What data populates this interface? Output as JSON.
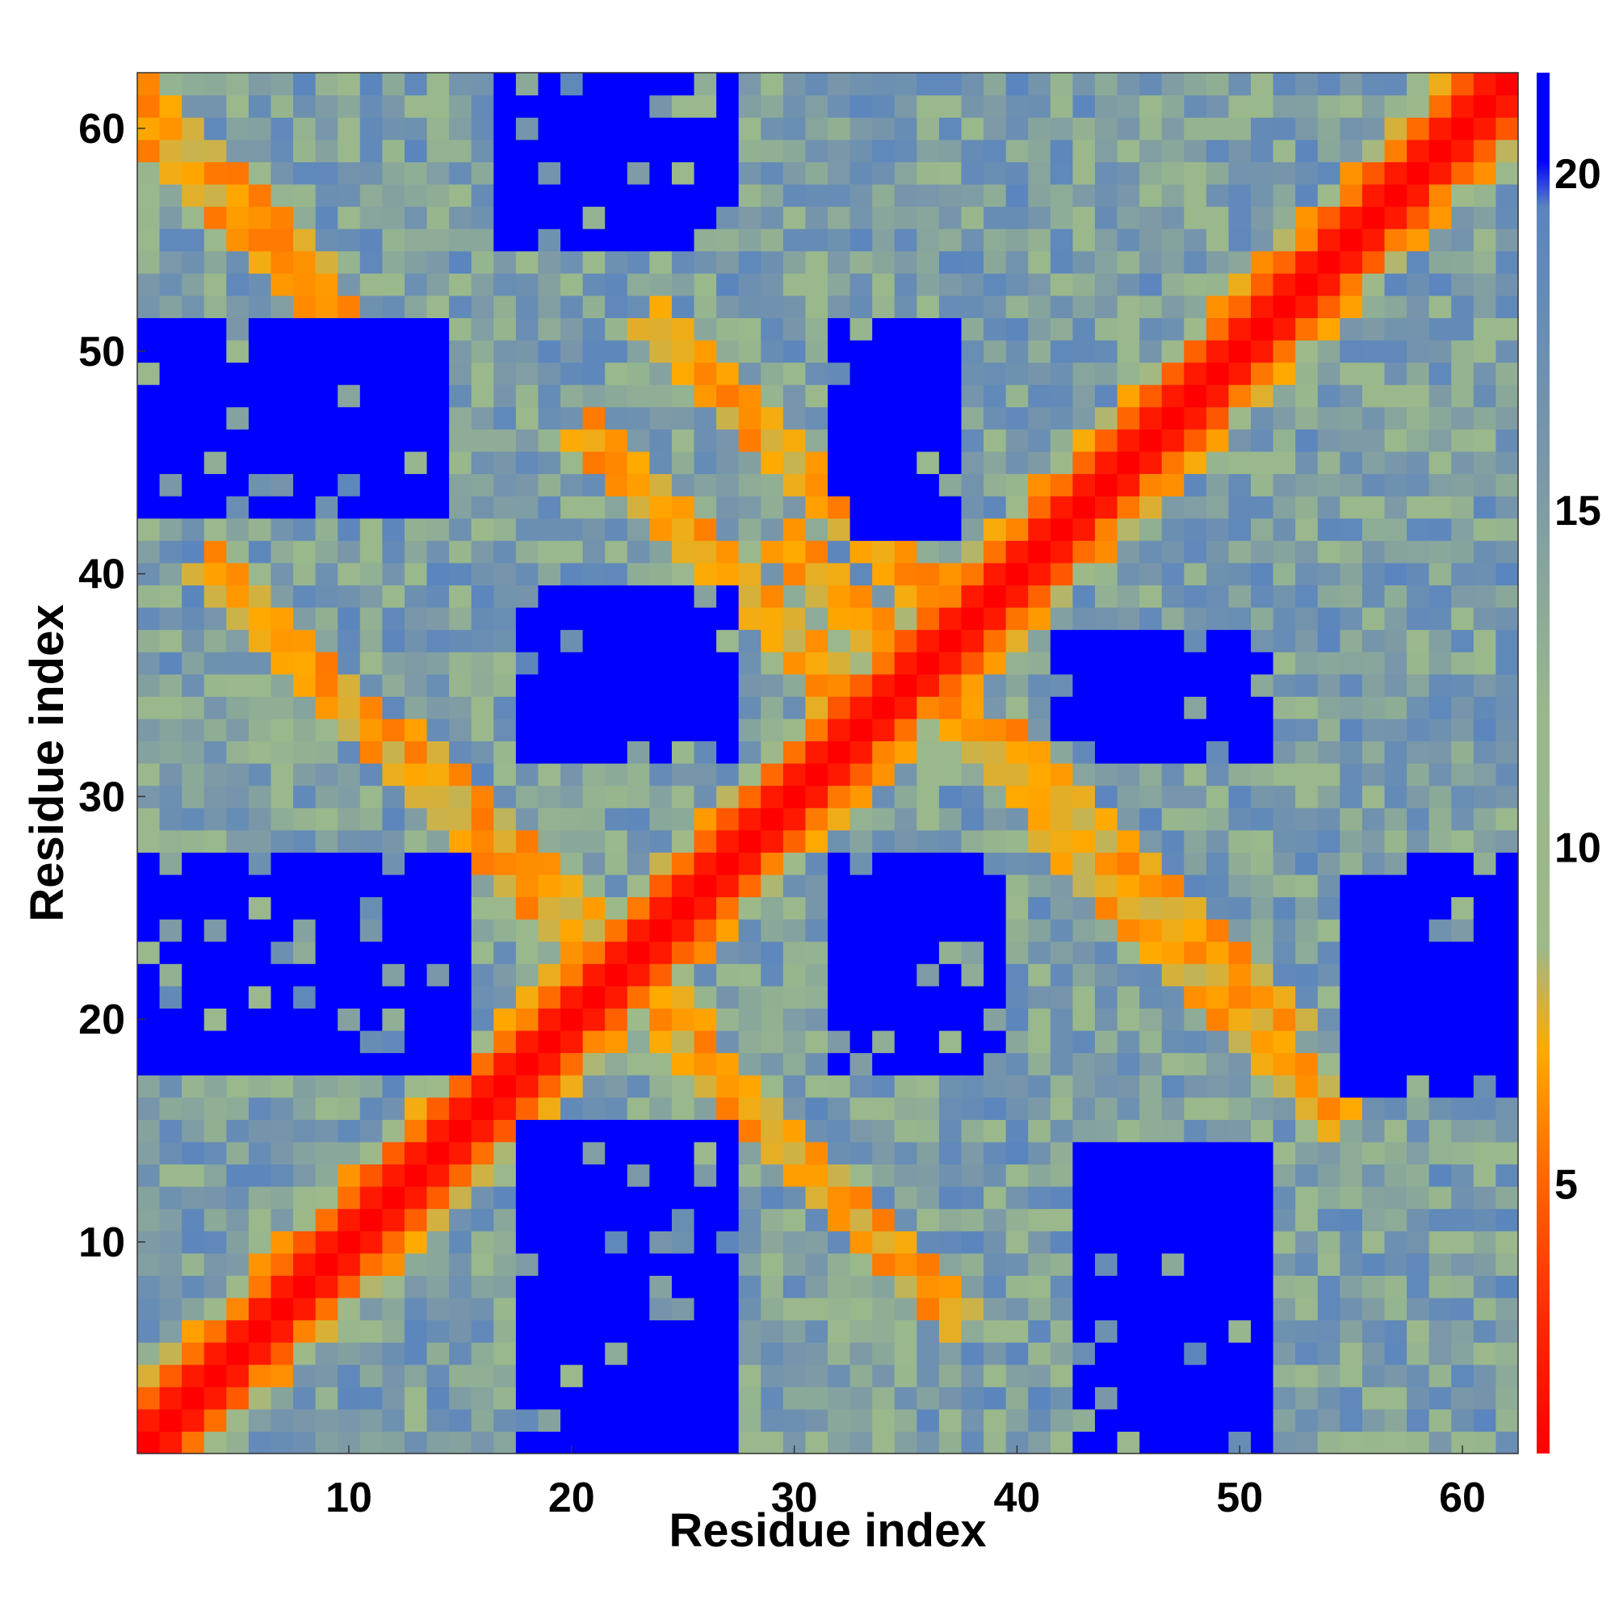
{
  "chart_data": {
    "type": "heatmap",
    "title": "",
    "xlabel": "Residue index",
    "ylabel": "Residue index",
    "x_range": [
      1,
      62
    ],
    "y_range": [
      1,
      62
    ],
    "x_ticks": [
      10,
      20,
      30,
      40,
      50,
      60
    ],
    "y_ticks": [
      10,
      20,
      30,
      40,
      50,
      60
    ],
    "colorbar": {
      "ticks": [
        5,
        10,
        15,
        20
      ],
      "range": [
        1,
        21.5
      ],
      "stops": [
        {
          "value": 1.0,
          "color": "#ff0000"
        },
        {
          "value": 3.0,
          "color": "#ff2a00"
        },
        {
          "value": 5.0,
          "color": "#ff6400"
        },
        {
          "value": 7.0,
          "color": "#ffaa00"
        },
        {
          "value": 8.5,
          "color": "#9eb98a"
        },
        {
          "value": 12.0,
          "color": "#99b88c"
        },
        {
          "value": 15.5,
          "color": "#7b98a8"
        },
        {
          "value": 19.5,
          "color": "#5a85be"
        },
        {
          "value": 20.2,
          "color": "#0000ff"
        },
        {
          "value": 21.5,
          "color": "#0000ff"
        }
      ]
    },
    "description_values": "Symmetric residue-residue distance map (Å); diagonal ~0 (red), near-contacts orange, distant pairs blue.",
    "anti_diagonal_contacts": [
      {
        "i": 2,
        "j": 60
      },
      {
        "i": 5,
        "j": 56
      },
      {
        "i": 10,
        "j": 34
      },
      {
        "i": 14,
        "j": 30
      },
      {
        "i": 19,
        "j": 26
      },
      {
        "i": 27,
        "j": 40
      },
      {
        "i": 30,
        "j": 45
      },
      {
        "i": 31,
        "j": 13
      },
      {
        "i": 36,
        "j": 35
      },
      {
        "i": 41,
        "j": 30
      },
      {
        "i": 46,
        "j": 26
      },
      {
        "i": 48,
        "j": 22
      }
    ],
    "far_regions": [
      {
        "x": [
          1,
          14
        ],
        "y": [
          19,
          26
        ]
      },
      {
        "x": [
          18,
          27
        ],
        "y": [
          1,
          15
        ]
      },
      {
        "x": [
          18,
          27
        ],
        "y": [
          32,
          38
        ]
      },
      {
        "x": [
          33,
          39
        ],
        "y": [
          19,
          27
        ]
      },
      {
        "x": [
          33,
          37
        ],
        "y": [
          42,
          50
        ]
      },
      {
        "x": [
          43,
          51
        ],
        "y": [
          1,
          14
        ]
      },
      {
        "x": [
          44,
          51
        ],
        "y": [
          32,
          37
        ]
      },
      {
        "x": [
          55,
          62
        ],
        "y": [
          17,
          26
        ]
      },
      {
        "x": [
          4,
          14
        ],
        "y": [
          43,
          47
        ]
      },
      {
        "x": [
          17,
          27
        ],
        "y": [
          57,
          62
        ]
      }
    ]
  }
}
